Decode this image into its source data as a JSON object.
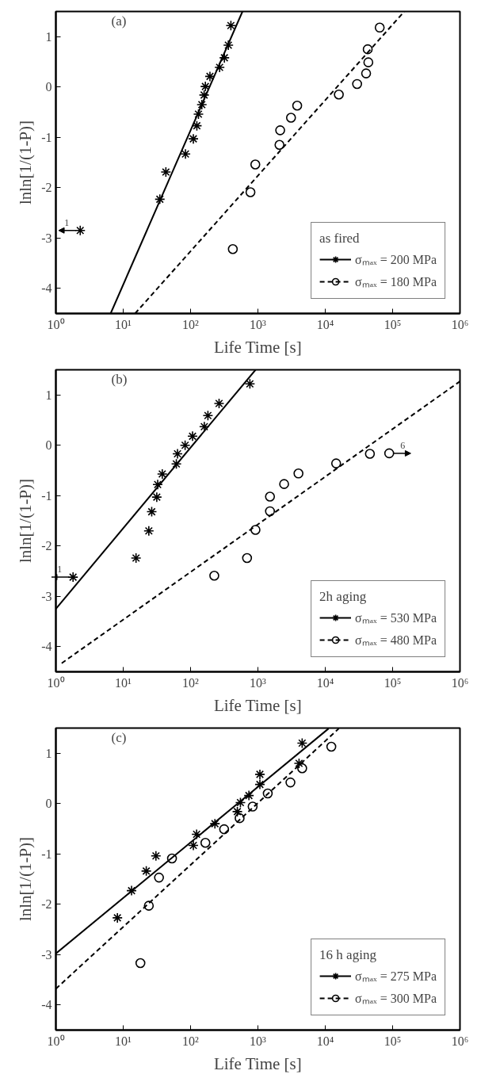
{
  "chart_data": [
    {
      "type": "scatter",
      "xlabel": "Life Time [s]",
      "ylabel": "lnln[1/(1-P)]",
      "legend_title": "as fired",
      "log": "x",
      "xlim": [
        1,
        1000000
      ],
      "ylim": [
        -4.5,
        1.5
      ],
      "xticks": [
        {
          "value": 1,
          "label": "10⁰"
        },
        {
          "value": 10,
          "label": "10¹"
        },
        {
          "value": 100,
          "label": "10²"
        },
        {
          "value": 1000,
          "label": "10³"
        },
        {
          "value": 10000,
          "label": "10⁴"
        },
        {
          "value": 100000,
          "label": "10⁵"
        },
        {
          "value": 1000000,
          "label": "10⁶"
        }
      ],
      "yticks": [
        -4,
        -3,
        -2,
        -1,
        0,
        1
      ],
      "grid": false,
      "legend": "bottom right",
      "annotations": [
        "(a)",
        {
          "text": "1",
          "x": 2.3,
          "y": -2.85
        }
      ],
      "series": [
        {
          "name": "σₘₐₓ = 200 MPa",
          "marker": "cross",
          "color": "#000000",
          "x": [
            2.3,
            35,
            43,
            84,
            110,
            124,
            131,
            147,
            159,
            166,
            194,
            270,
            318,
            364,
            397
          ],
          "values": [
            -2.85,
            -2.23,
            -1.69,
            -1.33,
            -1.03,
            -0.77,
            -0.54,
            -0.35,
            -0.16,
            0.01,
            0.21,
            0.39,
            0.58,
            0.83,
            1.22
          ]
        },
        {
          "type": "line",
          "line_style": "solid",
          "color": "#000000",
          "x": [
            6.5,
            590
          ],
          "values": [
            -4.5,
            1.5
          ]
        },
        {
          "name": "σₘₐₓ = 180 MPa",
          "marker": "circle",
          "color": "#000000",
          "x": [
            424,
            775,
            915,
            2090,
            2140,
            3100,
            3830,
            15900,
            29700,
            40400,
            43600,
            42700,
            64300
          ],
          "values": [
            -3.22,
            -2.09,
            -1.54,
            -1.15,
            -0.86,
            -0.61,
            -0.37,
            -0.15,
            0.06,
            0.27,
            0.49,
            0.75,
            1.18
          ]
        },
        {
          "type": "line",
          "line_style": "dashed",
          "color": "#000000",
          "x": [
            15,
            149000
          ],
          "values": [
            -4.5,
            1.5
          ]
        }
      ]
    },
    {
      "type": "scatter",
      "xlabel": "Life Time [s]",
      "ylabel": "lnln[1/(1-P)]",
      "legend_title": "2h aging",
      "log": "x",
      "xlim": [
        1,
        1000000
      ],
      "ylim": [
        -4.5,
        1.5
      ],
      "xticks": [
        {
          "value": 1,
          "label": "10⁰"
        },
        {
          "value": 10,
          "label": "10¹"
        },
        {
          "value": 100,
          "label": "10²"
        },
        {
          "value": 1000,
          "label": "10³"
        },
        {
          "value": 10000,
          "label": "10⁴"
        },
        {
          "value": 100000,
          "label": "10⁵"
        },
        {
          "value": 1000000,
          "label": "10⁶"
        }
      ],
      "yticks": [
        -4,
        -3,
        -2,
        -1,
        0,
        1
      ],
      "grid": false,
      "legend": "bottom right",
      "annotations": [
        "(b)",
        {
          "text": "1",
          "x": 1.8,
          "y": -2.62
        },
        {
          "text": "6",
          "x": 89000,
          "y": -0.16
        }
      ],
      "series": [
        {
          "name": "σₘₐₓ = 530 MPa",
          "marker": "cross",
          "color": "#000000",
          "x": [
            1.8,
            15.5,
            24,
            26.5,
            31.5,
            32.5,
            38,
            61.5,
            64,
            83,
            107,
            160,
            181,
            265,
            760
          ],
          "values": [
            -2.62,
            -2.24,
            -1.7,
            -1.32,
            -1.03,
            -0.78,
            -0.57,
            -0.37,
            -0.17,
            0.0,
            0.18,
            0.37,
            0.59,
            0.83,
            1.22
          ]
        },
        {
          "type": "line",
          "line_style": "solid",
          "color": "#000000",
          "x": [
            1,
            923
          ],
          "values": [
            -3.25,
            1.5
          ]
        },
        {
          "name": "σₘₐₓ = 480 MPa",
          "marker": "circle",
          "color": "#000000",
          "x": [
            225,
            690,
            920,
            1510,
            1510,
            2450,
            4000,
            14500,
            46000,
            89000
          ],
          "values": [
            -2.59,
            -2.24,
            -1.68,
            -1.31,
            -1.02,
            -0.77,
            -0.56,
            -0.36,
            -0.17,
            -0.16
          ]
        },
        {
          "type": "line",
          "line_style": "dashed",
          "color": "#000000",
          "x": [
            1.22,
            1000000
          ],
          "values": [
            -4.33,
            1.27
          ]
        }
      ]
    },
    {
      "type": "scatter",
      "xlabel": "Life Time [s]",
      "ylabel": "lnln[1/(1-P)]",
      "legend_title": "16 h aging",
      "log": "x",
      "xlim": [
        1,
        1000000
      ],
      "ylim": [
        -4.5,
        1.5
      ],
      "xticks": [
        {
          "value": 1,
          "label": "10⁰"
        },
        {
          "value": 10,
          "label": "10¹"
        },
        {
          "value": 100,
          "label": "10²"
        },
        {
          "value": 1000,
          "label": "10³"
        },
        {
          "value": 10000,
          "label": "10⁴"
        },
        {
          "value": 100000,
          "label": "10⁵"
        },
        {
          "value": 1000000,
          "label": "10⁶"
        }
      ],
      "yticks": [
        -4,
        -3,
        -2,
        -1,
        0,
        1
      ],
      "grid": false,
      "legend": "bottom right",
      "annotations": [
        "(c)"
      ],
      "series": [
        {
          "name": "σₘₐₓ = 275 MPa",
          "marker": "cross",
          "color": "#000000",
          "x": [
            8.2,
            13.3,
            22,
            30.6,
            110,
            123,
            230,
            495,
            550,
            735,
            1070,
            1070,
            4080,
            4540
          ],
          "values": [
            -2.27,
            -1.73,
            -1.34,
            -1.04,
            -0.83,
            -0.61,
            -0.4,
            -0.16,
            0.02,
            0.16,
            0.38,
            0.58,
            0.8,
            1.2
          ]
        },
        {
          "type": "line",
          "line_style": "solid",
          "color": "#000000",
          "x": [
            1,
            11200
          ],
          "values": [
            -2.98,
            1.49
          ]
        },
        {
          "name": "σₘₐₓ = 300 MPa",
          "marker": "circle",
          "color": "#000000",
          "x": [
            18,
            24,
            34,
            53,
            166,
            315,
            535,
            835,
            1400,
            3040,
            4540,
            12300
          ],
          "values": [
            -3.17,
            -2.03,
            -1.47,
            -1.09,
            -0.78,
            -0.51,
            -0.29,
            -0.06,
            0.2,
            0.42,
            0.7,
            1.13
          ]
        },
        {
          "type": "line",
          "line_style": "dashed",
          "color": "#000000",
          "x": [
            1,
            15900
          ],
          "values": [
            -3.68,
            1.49
          ]
        }
      ]
    }
  ]
}
